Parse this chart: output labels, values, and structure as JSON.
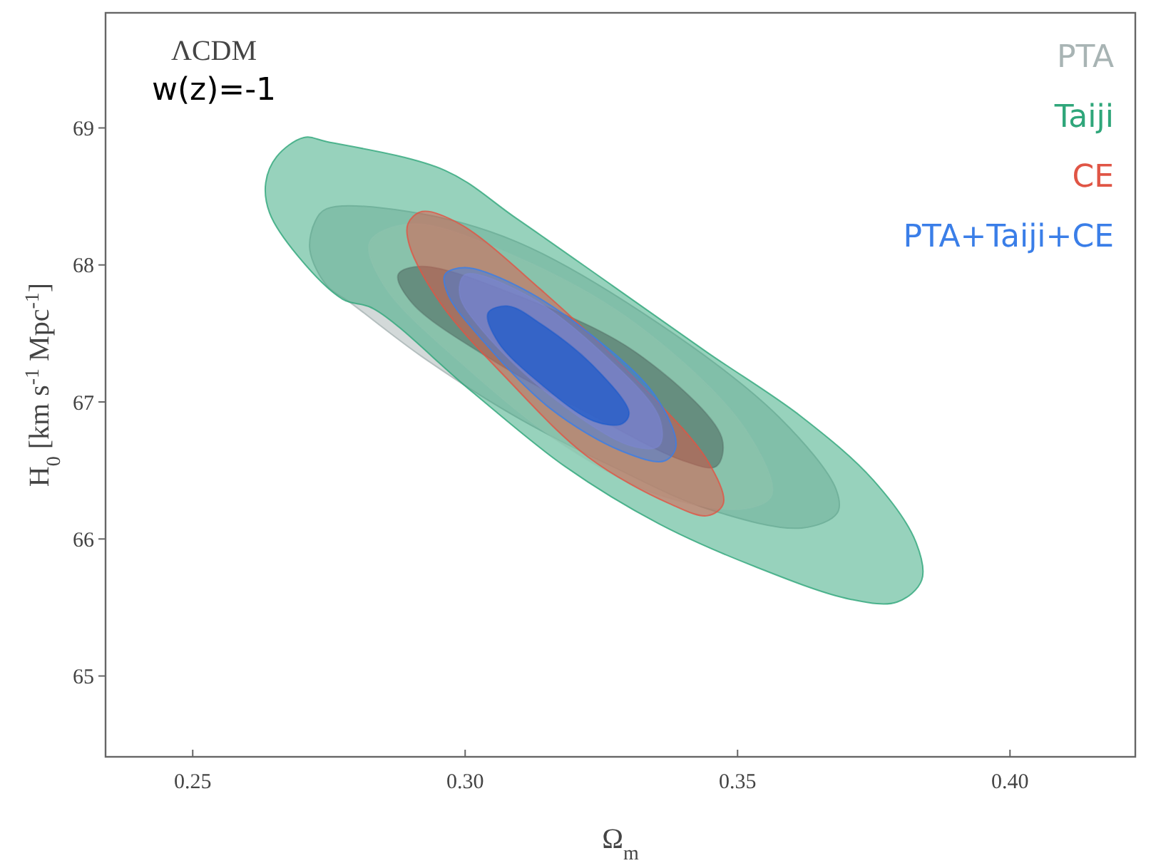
{
  "chart_data": {
    "type": "area",
    "xlabel": "Ω$_{m}$",
    "ylabel": "H$_{0}$ [km s$^{-1}$ Mpc$^{-1}$]",
    "annotations": [
      "ΛCDM",
      "w(z)=-1"
    ],
    "xlim": [
      0.234,
      0.423
    ],
    "ylim": [
      64.41,
      69.84
    ],
    "xticks": [
      {
        "value": 0.25,
        "label": "0.25"
      },
      {
        "value": 0.3,
        "label": "0.30"
      },
      {
        "value": 0.35,
        "label": "0.35"
      },
      {
        "value": 0.4,
        "label": "0.40"
      }
    ],
    "yticks": [
      65,
      66,
      67,
      68,
      69
    ],
    "grid": false,
    "legend": "top right",
    "series": [
      {
        "name": "PTA",
        "color": "#a8b4b4",
        "x": [
          0.2725,
          0.2746,
          0.2895,
          0.3094,
          0.3356,
          0.3576,
          0.3681,
          0.3683,
          0.3618,
          0.3445,
          0.327,
          0.3094,
          0.2921,
          0.2791,
          0.2746,
          0.2715
        ],
        "values": [
          68.32,
          68.41,
          68.39,
          68.17,
          67.57,
          66.89,
          66.36,
          66.19,
          66.08,
          66.22,
          66.53,
          66.89,
          67.33,
          67.72,
          67.85,
          68.11
        ]
      },
      {
        "name": "Taiji",
        "color": "#2fa67a",
        "x": [
          0.2634,
          0.2654,
          0.2704,
          0.2746,
          0.2963,
          0.3094,
          0.327,
          0.3445,
          0.3618,
          0.3749,
          0.3827,
          0.3838,
          0.3793,
          0.3707,
          0.3531,
          0.3356,
          0.3183,
          0.3008,
          0.2832,
          0.2775,
          0.2694,
          0.2641
        ],
        "values": [
          68.6,
          68.79,
          68.93,
          68.9,
          68.69,
          68.34,
          67.85,
          67.36,
          66.89,
          66.43,
          65.98,
          65.7,
          65.54,
          65.56,
          65.8,
          66.11,
          66.53,
          67.09,
          67.68,
          67.75,
          68.06,
          68.38
        ]
      },
      {
        "color": "#8fc4ae",
        "x": [
          0.2825,
          0.2903,
          0.3094,
          0.3314,
          0.3513,
          0.3563,
          0.3513,
          0.3356,
          0.3183,
          0.3008,
          0.2851
        ],
        "values": [
          68.17,
          68.3,
          68.06,
          67.57,
          66.81,
          66.32,
          66.22,
          66.32,
          66.68,
          67.23,
          67.85
        ]
      },
      {
        "color": "#4f6a62",
        "x": [
          0.2877,
          0.2921,
          0.3094,
          0.3314,
          0.3471,
          0.3461,
          0.3401,
          0.3225,
          0.3052,
          0.2903
        ],
        "values": [
          67.93,
          67.99,
          67.78,
          67.36,
          66.74,
          66.53,
          66.57,
          66.92,
          67.3,
          67.72
        ]
      },
      {
        "name": "CE",
        "color": "#e05545",
        "x": [
          0.2895,
          0.2921,
          0.299,
          0.3139,
          0.3314,
          0.3445,
          0.3474,
          0.3445,
          0.3374,
          0.3225,
          0.3079,
          0.2955,
          0.2898
        ],
        "values": [
          68.3,
          68.39,
          68.3,
          67.82,
          67.16,
          66.57,
          66.26,
          66.17,
          66.26,
          66.6,
          67.16,
          67.72,
          68.14
        ]
      },
      {
        "name": "PTA+Taiji+CE",
        "color": "#3a7ee8",
        "x": [
          0.2963,
          0.3,
          0.3094,
          0.3225,
          0.3348,
          0.3387,
          0.3366,
          0.3288,
          0.3157,
          0.3034,
          0.2969
        ],
        "values": [
          67.93,
          67.98,
          67.85,
          67.51,
          67.05,
          66.68,
          66.57,
          66.64,
          66.95,
          67.44,
          67.78
        ]
      },
      {
        "color": "#7c86d4",
        "x": [
          0.3,
          0.3113,
          0.3251,
          0.3356,
          0.3356,
          0.3304,
          0.3165,
          0.3034,
          0.299
        ],
        "values": [
          67.93,
          67.78,
          67.36,
          66.89,
          66.68,
          66.68,
          67.02,
          67.51,
          67.78
        ]
      },
      {
        "color": "#0a52cc",
        "x": [
          0.3042,
          0.3079,
          0.3139,
          0.3236,
          0.3301,
          0.3288,
          0.3236,
          0.3139,
          0.306
        ],
        "values": [
          67.65,
          67.7,
          67.57,
          67.26,
          66.92,
          66.84,
          66.86,
          67.13,
          67.44
        ]
      }
    ]
  }
}
